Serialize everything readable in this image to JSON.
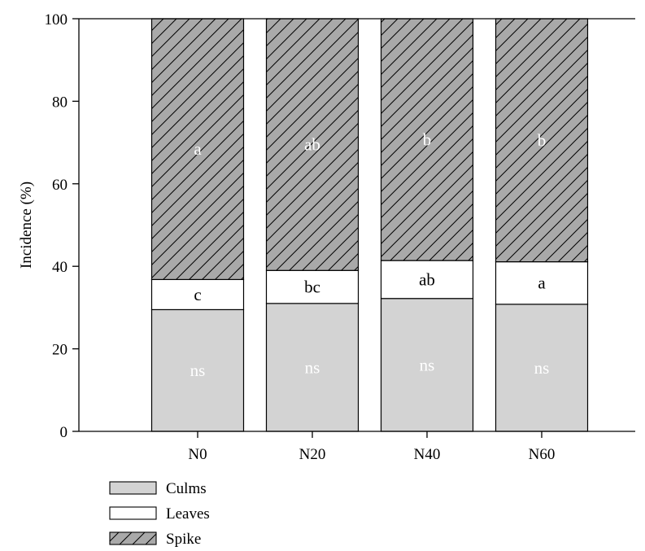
{
  "chart_data": {
    "type": "bar",
    "stacked": true,
    "categories": [
      "N0",
      "N20",
      "N40",
      "N60"
    ],
    "series": [
      {
        "name": "Culms",
        "values": [
          29.5,
          31.0,
          32.2,
          30.8
        ],
        "labels": [
          "ns",
          "ns",
          "ns",
          "ns"
        ],
        "color": "#d3d3d3",
        "label_color": "#ffffff",
        "pattern": "none"
      },
      {
        "name": "Leaves",
        "values": [
          7.3,
          8.0,
          9.2,
          10.3
        ],
        "labels": [
          "c",
          "bc",
          "ab",
          "a"
        ],
        "color": "#ffffff",
        "label_color": "#000000",
        "pattern": "none"
      },
      {
        "name": "Spike",
        "values": [
          63.2,
          61.0,
          58.6,
          58.9
        ],
        "labels": [
          "a",
          "ab",
          "b",
          "b"
        ],
        "color": "#a9a9a9",
        "label_color": "#ffffff",
        "pattern": "diagonal-hatch"
      }
    ],
    "ylabel": "Incidence (%)",
    "xlabel": "",
    "ylim": [
      0,
      100
    ],
    "yticks": [
      0,
      20,
      40,
      60,
      80,
      100
    ],
    "grid": false,
    "legend_position": "bottom-left"
  }
}
